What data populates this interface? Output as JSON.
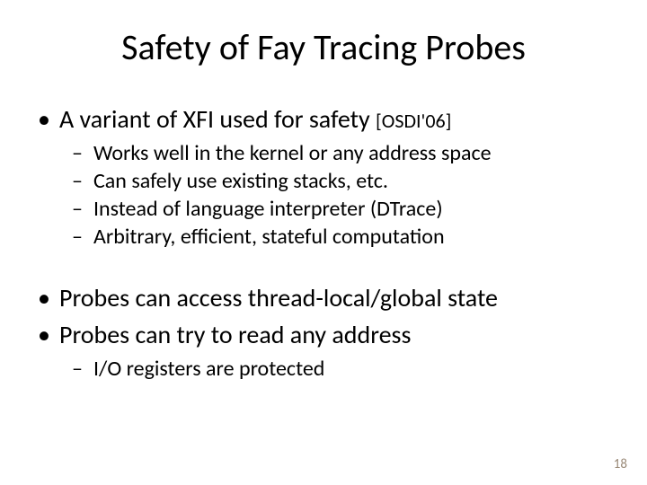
{
  "title": "Safety of Fay Tracing Probes",
  "bullets": {
    "b1_main": "A variant of XFI used for safety ",
    "b1_cite": "[OSDI'06]",
    "b1_sub1": "Works well in the kernel or any address space",
    "b1_sub2": "Can safely use existing stacks, etc.",
    "b1_sub3": "Instead of language interpreter (DTrace)",
    "b1_sub4": "Arbitrary, efficient, stateful computation",
    "b2_main": "Probes can access thread-local/global state",
    "b3_main": "Probes can try to read any address",
    "b3_sub1": "I/O registers are protected"
  },
  "page_number": "18",
  "style": {
    "title_fontsize": "40px",
    "l1_fontsize": "28px",
    "l2_fontsize": "24px",
    "cite_fontsize": "22px",
    "pageno_fontsize": "15px",
    "pageno_color": "#9a8a78",
    "l1_marker": "•",
    "l2_marker": "–"
  }
}
